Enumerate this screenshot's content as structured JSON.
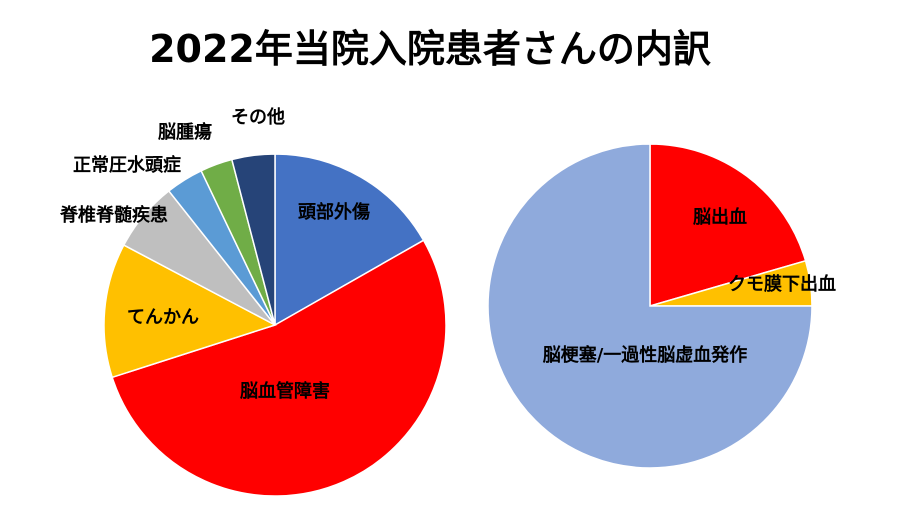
{
  "title": "2022年当院入院患者さんの内訳",
  "colors": {
    "blue": "#4472C4",
    "red": "#FF0000",
    "orange": "#FFC000",
    "gray": "#BFBFBF",
    "lightblue": "#5B9BD5",
    "green": "#70AD47",
    "navy": "#264478",
    "paleblue": "#8FAADC"
  },
  "chart_data": [
    {
      "type": "pie",
      "title": "",
      "start_angle": 0,
      "direction": "clockwise",
      "slices": [
        {
          "label": "頭部外傷",
          "value": 16.5,
          "color": "#4472C4"
        },
        {
          "label": "脳血管障害",
          "value": 52.5,
          "color": "#FF0000"
        },
        {
          "label": "てんかん",
          "value": 12.5,
          "color": "#FFC000"
        },
        {
          "label": "脊椎脊髄疾患",
          "value": 6.5,
          "color": "#BFBFBF"
        },
        {
          "label": "正常圧水頭症",
          "value": 3.5,
          "color": "#5B9BD5"
        },
        {
          "label": "脳腫瘍",
          "value": 3.0,
          "color": "#70AD47"
        },
        {
          "label": "その他",
          "value": 4.0,
          "color": "#264478"
        }
      ]
    },
    {
      "type": "pie",
      "title": "",
      "start_angle": 0,
      "direction": "clockwise",
      "slices": [
        {
          "label": "脳出血",
          "value": 20.5,
          "color": "#FF0000"
        },
        {
          "label": "クモ膜下出血",
          "value": 4.5,
          "color": "#FFC000"
        },
        {
          "label": "脳梗塞/一過性脳虚血発作",
          "value": 75.0,
          "color": "#8FAADC"
        }
      ]
    }
  ]
}
